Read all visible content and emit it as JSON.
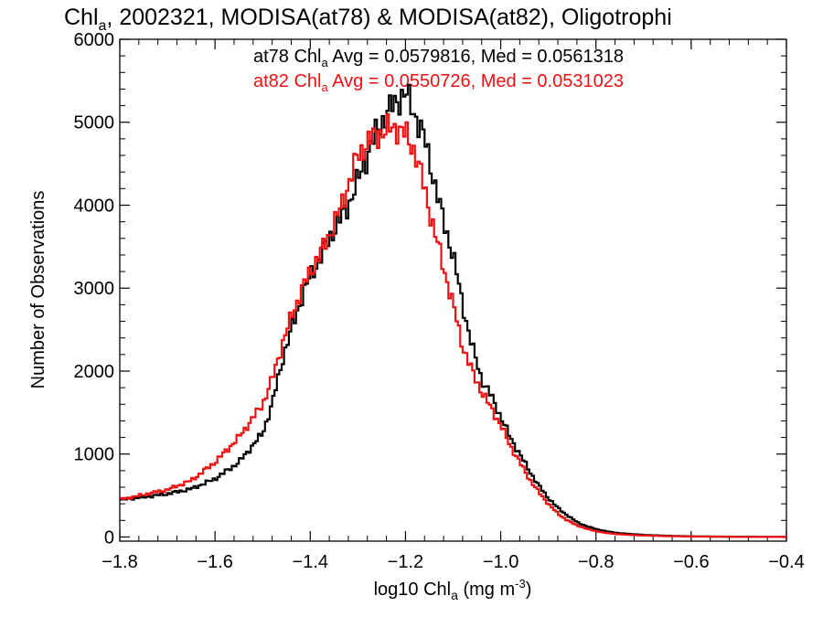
{
  "chart_data": {
    "type": "line",
    "title_main": "Chl",
    "title_sub": "a",
    "title_rest": ", 2002321, MODISA(at78) & MODISA(at82), Oligotrophi",
    "xlabel_main": "log10 Chl",
    "xlabel_sub": "a",
    "xlabel_units": " (mg m",
    "xlabel_sup": "-3",
    "xlabel_close": ")",
    "ylabel": "Number of Observations",
    "xlim": [
      -1.8,
      -0.4
    ],
    "ylim": [
      -50,
      6000
    ],
    "x_ticks": [
      -1.8,
      -1.6,
      -1.4,
      -1.2,
      -1.0,
      -0.8,
      -0.6,
      -0.4
    ],
    "x_tick_labels": [
      "−1.8",
      "−1.6",
      "−1.4",
      "−1.2",
      "−1.0",
      "−0.8",
      "−0.6",
      "−0.4"
    ],
    "y_ticks": [
      0,
      1000,
      2000,
      3000,
      4000,
      5000,
      6000
    ],
    "y_tick_labels": [
      "0",
      "1000",
      "2000",
      "3000",
      "4000",
      "5000",
      "6000"
    ],
    "legend": [
      {
        "prefix": "at78 Chl",
        "sub": "a",
        "suffix": " Avg = 0.0579816, Med = 0.0561318",
        "color": "#000000"
      },
      {
        "prefix": "at82 Chl",
        "sub": "a",
        "suffix": " Avg = 0.0550726, Med = 0.0531023",
        "color": "#ee1111"
      }
    ],
    "series": [
      {
        "name": "at78",
        "color": "#000000",
        "x": [
          -1.8,
          -1.75,
          -1.7,
          -1.65,
          -1.6,
          -1.55,
          -1.5,
          -1.48,
          -1.46,
          -1.44,
          -1.42,
          -1.4,
          -1.38,
          -1.36,
          -1.34,
          -1.32,
          -1.3,
          -1.28,
          -1.26,
          -1.24,
          -1.22,
          -1.2,
          -1.18,
          -1.16,
          -1.14,
          -1.12,
          -1.1,
          -1.08,
          -1.06,
          -1.04,
          -1.02,
          -1.0,
          -0.98,
          -0.96,
          -0.94,
          -0.92,
          -0.9,
          -0.88,
          -0.86,
          -0.84,
          -0.82,
          -0.8,
          -0.78,
          -0.75,
          -0.7,
          -0.65,
          -0.6,
          -0.55,
          -0.5,
          -0.45,
          -0.4
        ],
        "y": [
          450,
          480,
          520,
          580,
          700,
          900,
          1250,
          1600,
          2100,
          2500,
          2850,
          3150,
          3350,
          3600,
          3800,
          4000,
          4300,
          4600,
          4900,
          5100,
          5250,
          5350,
          5100,
          4800,
          4300,
          3800,
          3400,
          2800,
          2300,
          1900,
          1700,
          1450,
          1200,
          1000,
          800,
          620,
          470,
          350,
          260,
          180,
          130,
          95,
          70,
          45,
          25,
          15,
          8,
          5,
          3,
          2,
          0
        ]
      },
      {
        "name": "at82",
        "color": "#ee1111",
        "x": [
          -1.8,
          -1.75,
          -1.7,
          -1.65,
          -1.6,
          -1.55,
          -1.5,
          -1.48,
          -1.46,
          -1.44,
          -1.42,
          -1.4,
          -1.38,
          -1.36,
          -1.34,
          -1.32,
          -1.3,
          -1.28,
          -1.26,
          -1.24,
          -1.22,
          -1.2,
          -1.18,
          -1.16,
          -1.14,
          -1.12,
          -1.1,
          -1.08,
          -1.06,
          -1.04,
          -1.02,
          -1.0,
          -0.98,
          -0.96,
          -0.94,
          -0.92,
          -0.9,
          -0.88,
          -0.86,
          -0.84,
          -0.82,
          -0.8,
          -0.78,
          -0.75,
          -0.7,
          -0.65,
          -0.6,
          -0.55,
          -0.5,
          -0.45,
          -0.4
        ],
        "y": [
          450,
          510,
          570,
          680,
          900,
          1200,
          1600,
          1900,
          2300,
          2650,
          2950,
          3200,
          3400,
          3650,
          3900,
          4250,
          4600,
          4750,
          4850,
          4900,
          4950,
          4850,
          4650,
          4200,
          3700,
          3250,
          2800,
          2300,
          2000,
          1750,
          1550,
          1350,
          1100,
          900,
          700,
          540,
          400,
          280,
          200,
          140,
          100,
          70,
          50,
          32,
          18,
          10,
          6,
          4,
          2,
          1,
          0
        ]
      }
    ]
  }
}
